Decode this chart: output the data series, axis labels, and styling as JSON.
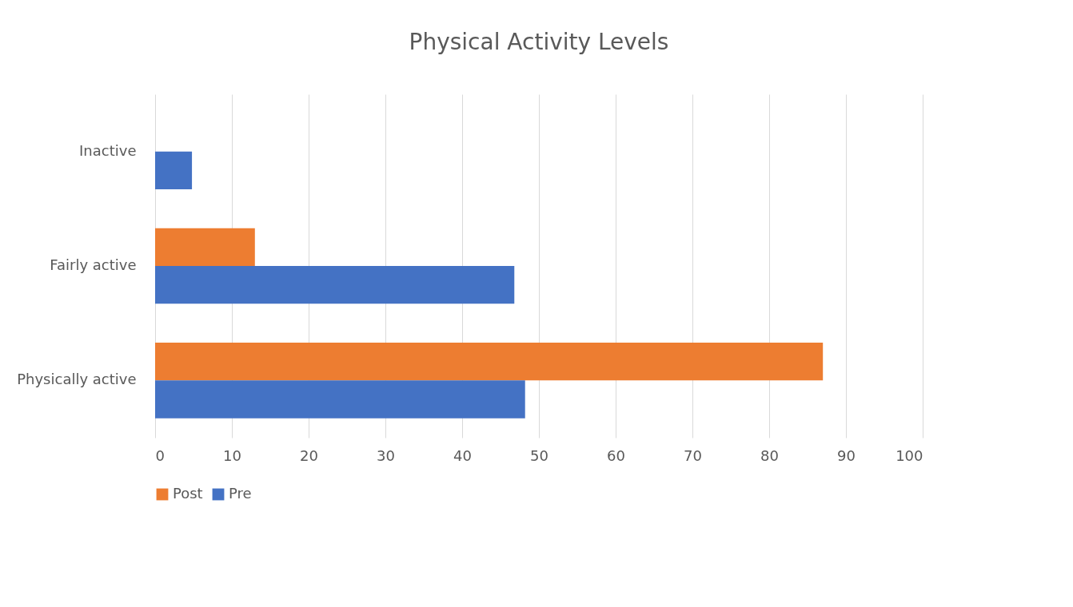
{
  "chart_data": {
    "type": "bar",
    "orientation": "horizontal",
    "title": "Physical Activity Levels",
    "categories": [
      "Inactive",
      "Fairly active",
      "Physically active"
    ],
    "series": [
      {
        "name": "Post",
        "color": "#ed7d31",
        "values": [
          null,
          13.0,
          87.0
        ]
      },
      {
        "name": "Pre",
        "color": "#4472c4",
        "values": [
          4.8,
          46.8,
          48.2
        ]
      }
    ],
    "xlim": [
      0,
      100
    ],
    "xticks": [
      0,
      10,
      20,
      30,
      40,
      50,
      60,
      70,
      80,
      90,
      100
    ],
    "grid": "x",
    "legend": "bottom"
  }
}
